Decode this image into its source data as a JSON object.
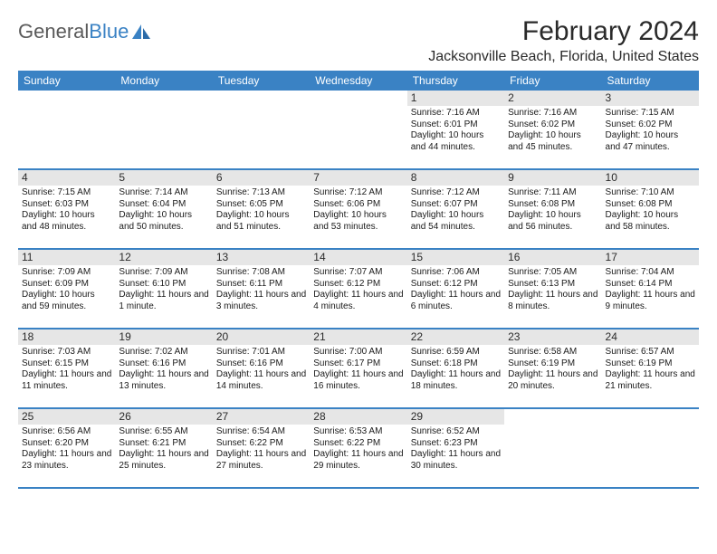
{
  "logo": {
    "text1": "General",
    "text2": "Blue"
  },
  "title": "February 2024",
  "location": "Jacksonville Beach, Florida, United States",
  "colors": {
    "header_bg": "#3a82c4",
    "header_text": "#ffffff",
    "daynum_bg": "#e6e6e6",
    "border": "#3a82c4",
    "logo_gray": "#5a5a5a",
    "logo_blue": "#3a82c4"
  },
  "days_of_week": [
    "Sunday",
    "Monday",
    "Tuesday",
    "Wednesday",
    "Thursday",
    "Friday",
    "Saturday"
  ],
  "weeks": [
    [
      {
        "n": "",
        "sr": "",
        "ss": "",
        "dl": ""
      },
      {
        "n": "",
        "sr": "",
        "ss": "",
        "dl": ""
      },
      {
        "n": "",
        "sr": "",
        "ss": "",
        "dl": ""
      },
      {
        "n": "",
        "sr": "",
        "ss": "",
        "dl": ""
      },
      {
        "n": "1",
        "sr": "Sunrise: 7:16 AM",
        "ss": "Sunset: 6:01 PM",
        "dl": "Daylight: 10 hours and 44 minutes."
      },
      {
        "n": "2",
        "sr": "Sunrise: 7:16 AM",
        "ss": "Sunset: 6:02 PM",
        "dl": "Daylight: 10 hours and 45 minutes."
      },
      {
        "n": "3",
        "sr": "Sunrise: 7:15 AM",
        "ss": "Sunset: 6:02 PM",
        "dl": "Daylight: 10 hours and 47 minutes."
      }
    ],
    [
      {
        "n": "4",
        "sr": "Sunrise: 7:15 AM",
        "ss": "Sunset: 6:03 PM",
        "dl": "Daylight: 10 hours and 48 minutes."
      },
      {
        "n": "5",
        "sr": "Sunrise: 7:14 AM",
        "ss": "Sunset: 6:04 PM",
        "dl": "Daylight: 10 hours and 50 minutes."
      },
      {
        "n": "6",
        "sr": "Sunrise: 7:13 AM",
        "ss": "Sunset: 6:05 PM",
        "dl": "Daylight: 10 hours and 51 minutes."
      },
      {
        "n": "7",
        "sr": "Sunrise: 7:12 AM",
        "ss": "Sunset: 6:06 PM",
        "dl": "Daylight: 10 hours and 53 minutes."
      },
      {
        "n": "8",
        "sr": "Sunrise: 7:12 AM",
        "ss": "Sunset: 6:07 PM",
        "dl": "Daylight: 10 hours and 54 minutes."
      },
      {
        "n": "9",
        "sr": "Sunrise: 7:11 AM",
        "ss": "Sunset: 6:08 PM",
        "dl": "Daylight: 10 hours and 56 minutes."
      },
      {
        "n": "10",
        "sr": "Sunrise: 7:10 AM",
        "ss": "Sunset: 6:08 PM",
        "dl": "Daylight: 10 hours and 58 minutes."
      }
    ],
    [
      {
        "n": "11",
        "sr": "Sunrise: 7:09 AM",
        "ss": "Sunset: 6:09 PM",
        "dl": "Daylight: 10 hours and 59 minutes."
      },
      {
        "n": "12",
        "sr": "Sunrise: 7:09 AM",
        "ss": "Sunset: 6:10 PM",
        "dl": "Daylight: 11 hours and 1 minute."
      },
      {
        "n": "13",
        "sr": "Sunrise: 7:08 AM",
        "ss": "Sunset: 6:11 PM",
        "dl": "Daylight: 11 hours and 3 minutes."
      },
      {
        "n": "14",
        "sr": "Sunrise: 7:07 AM",
        "ss": "Sunset: 6:12 PM",
        "dl": "Daylight: 11 hours and 4 minutes."
      },
      {
        "n": "15",
        "sr": "Sunrise: 7:06 AM",
        "ss": "Sunset: 6:12 PM",
        "dl": "Daylight: 11 hours and 6 minutes."
      },
      {
        "n": "16",
        "sr": "Sunrise: 7:05 AM",
        "ss": "Sunset: 6:13 PM",
        "dl": "Daylight: 11 hours and 8 minutes."
      },
      {
        "n": "17",
        "sr": "Sunrise: 7:04 AM",
        "ss": "Sunset: 6:14 PM",
        "dl": "Daylight: 11 hours and 9 minutes."
      }
    ],
    [
      {
        "n": "18",
        "sr": "Sunrise: 7:03 AM",
        "ss": "Sunset: 6:15 PM",
        "dl": "Daylight: 11 hours and 11 minutes."
      },
      {
        "n": "19",
        "sr": "Sunrise: 7:02 AM",
        "ss": "Sunset: 6:16 PM",
        "dl": "Daylight: 11 hours and 13 minutes."
      },
      {
        "n": "20",
        "sr": "Sunrise: 7:01 AM",
        "ss": "Sunset: 6:16 PM",
        "dl": "Daylight: 11 hours and 14 minutes."
      },
      {
        "n": "21",
        "sr": "Sunrise: 7:00 AM",
        "ss": "Sunset: 6:17 PM",
        "dl": "Daylight: 11 hours and 16 minutes."
      },
      {
        "n": "22",
        "sr": "Sunrise: 6:59 AM",
        "ss": "Sunset: 6:18 PM",
        "dl": "Daylight: 11 hours and 18 minutes."
      },
      {
        "n": "23",
        "sr": "Sunrise: 6:58 AM",
        "ss": "Sunset: 6:19 PM",
        "dl": "Daylight: 11 hours and 20 minutes."
      },
      {
        "n": "24",
        "sr": "Sunrise: 6:57 AM",
        "ss": "Sunset: 6:19 PM",
        "dl": "Daylight: 11 hours and 21 minutes."
      }
    ],
    [
      {
        "n": "25",
        "sr": "Sunrise: 6:56 AM",
        "ss": "Sunset: 6:20 PM",
        "dl": "Daylight: 11 hours and 23 minutes."
      },
      {
        "n": "26",
        "sr": "Sunrise: 6:55 AM",
        "ss": "Sunset: 6:21 PM",
        "dl": "Daylight: 11 hours and 25 minutes."
      },
      {
        "n": "27",
        "sr": "Sunrise: 6:54 AM",
        "ss": "Sunset: 6:22 PM",
        "dl": "Daylight: 11 hours and 27 minutes."
      },
      {
        "n": "28",
        "sr": "Sunrise: 6:53 AM",
        "ss": "Sunset: 6:22 PM",
        "dl": "Daylight: 11 hours and 29 minutes."
      },
      {
        "n": "29",
        "sr": "Sunrise: 6:52 AM",
        "ss": "Sunset: 6:23 PM",
        "dl": "Daylight: 11 hours and 30 minutes."
      },
      {
        "n": "",
        "sr": "",
        "ss": "",
        "dl": ""
      },
      {
        "n": "",
        "sr": "",
        "ss": "",
        "dl": ""
      }
    ]
  ]
}
